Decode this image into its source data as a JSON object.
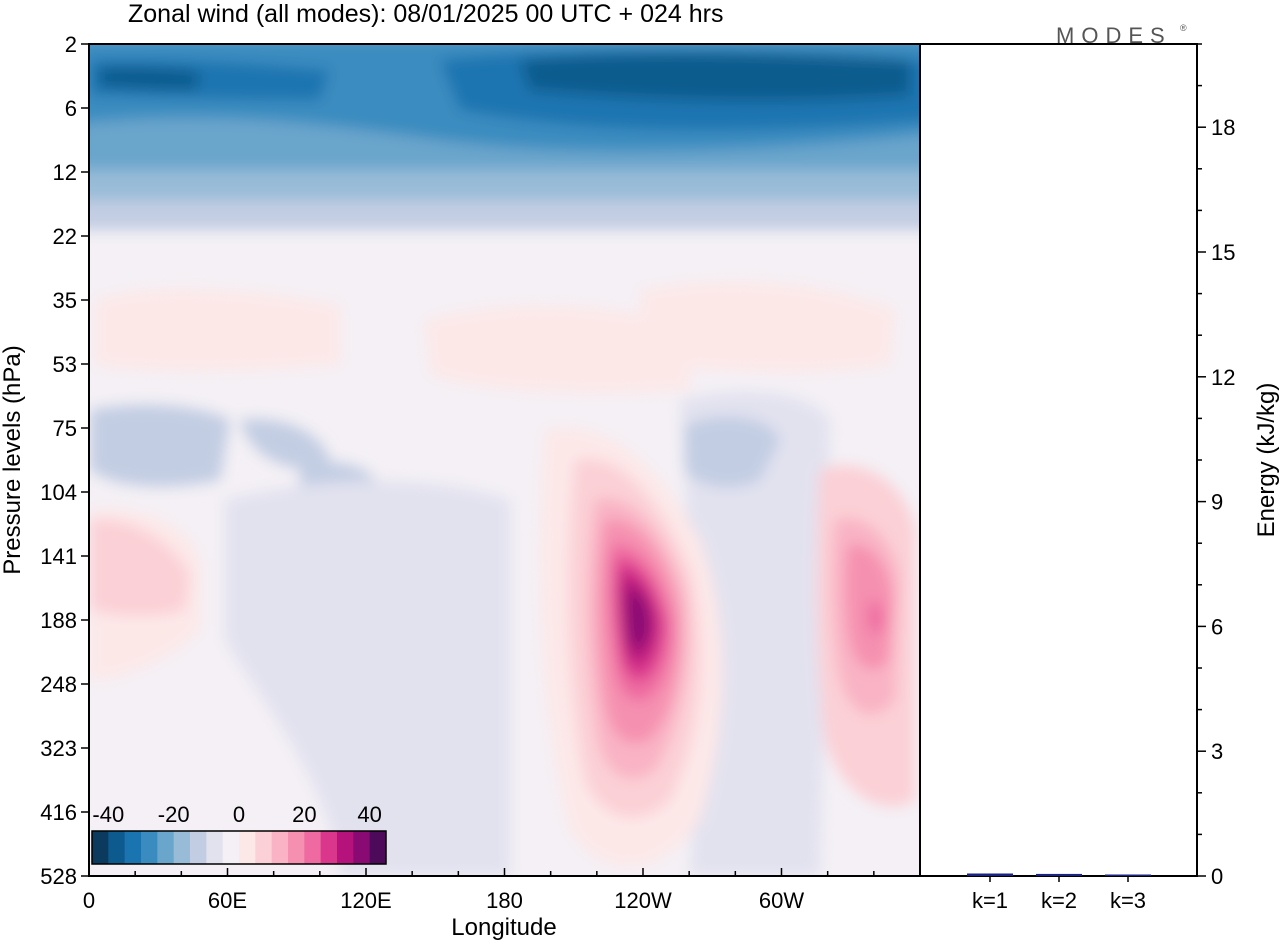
{
  "title": "Zonal wind (all modes):  08/01/2025  00 UTC  + 024 hrs",
  "logo": "MODES",
  "logo_mark": "®",
  "chart_data": [
    {
      "type": "heatmap",
      "title": "Zonal wind (all modes):  08/01/2025  00 UTC  + 024 hrs",
      "xlabel": "Longitude",
      "ylabel": "Pressure levels (hPa)",
      "x_tick_labels": [
        "0",
        "60E",
        "120E",
        "180",
        "120W",
        "60W"
      ],
      "x_ticks_deg": [
        0,
        60,
        120,
        180,
        240,
        300
      ],
      "xlim_deg": [
        0,
        360
      ],
      "y_tick_labels": [
        "2",
        "6",
        "12",
        "22",
        "35",
        "53",
        "75",
        "104",
        "141",
        "188",
        "248",
        "323",
        "416",
        "528"
      ],
      "colorbar": {
        "tick_labels": [
          "-40",
          "-20",
          "0",
          "20",
          "40"
        ],
        "range": [
          -45,
          45
        ],
        "step": 5,
        "colors": [
          "#0b3a5e",
          "#0d5b8e",
          "#1a74b0",
          "#3a8cc0",
          "#6aa5cc",
          "#98bcd8",
          "#c2cde3",
          "#e2e2ef",
          "#f4f0f5",
          "#fde8e8",
          "#fbd0d6",
          "#f9b3c4",
          "#f590b0",
          "#ee6aa0",
          "#d9368c",
          "#b5127c",
          "#8a0a74",
          "#4d0a5a"
        ]
      },
      "features": [
        {
          "label": "upper-level easterlies",
          "levels": "2-12 hPa",
          "u": -25
        },
        {
          "label": "jet core near 120W",
          "level": "188 hPa",
          "u": 40
        },
        {
          "label": "secondary jet near 20W",
          "level": "188 hPa",
          "u": 25
        }
      ]
    },
    {
      "type": "bar",
      "categories": [
        "k=1",
        "k=2",
        "k=3"
      ],
      "values": [
        0.06,
        0.05,
        0.02
      ],
      "ylabel": "Energy (kJ/kg)",
      "ylim": [
        0,
        20
      ],
      "y_ticks": [
        "0",
        "3",
        "6",
        "9",
        "12",
        "15",
        "18"
      ],
      "bar_color": "#1a237e"
    }
  ]
}
